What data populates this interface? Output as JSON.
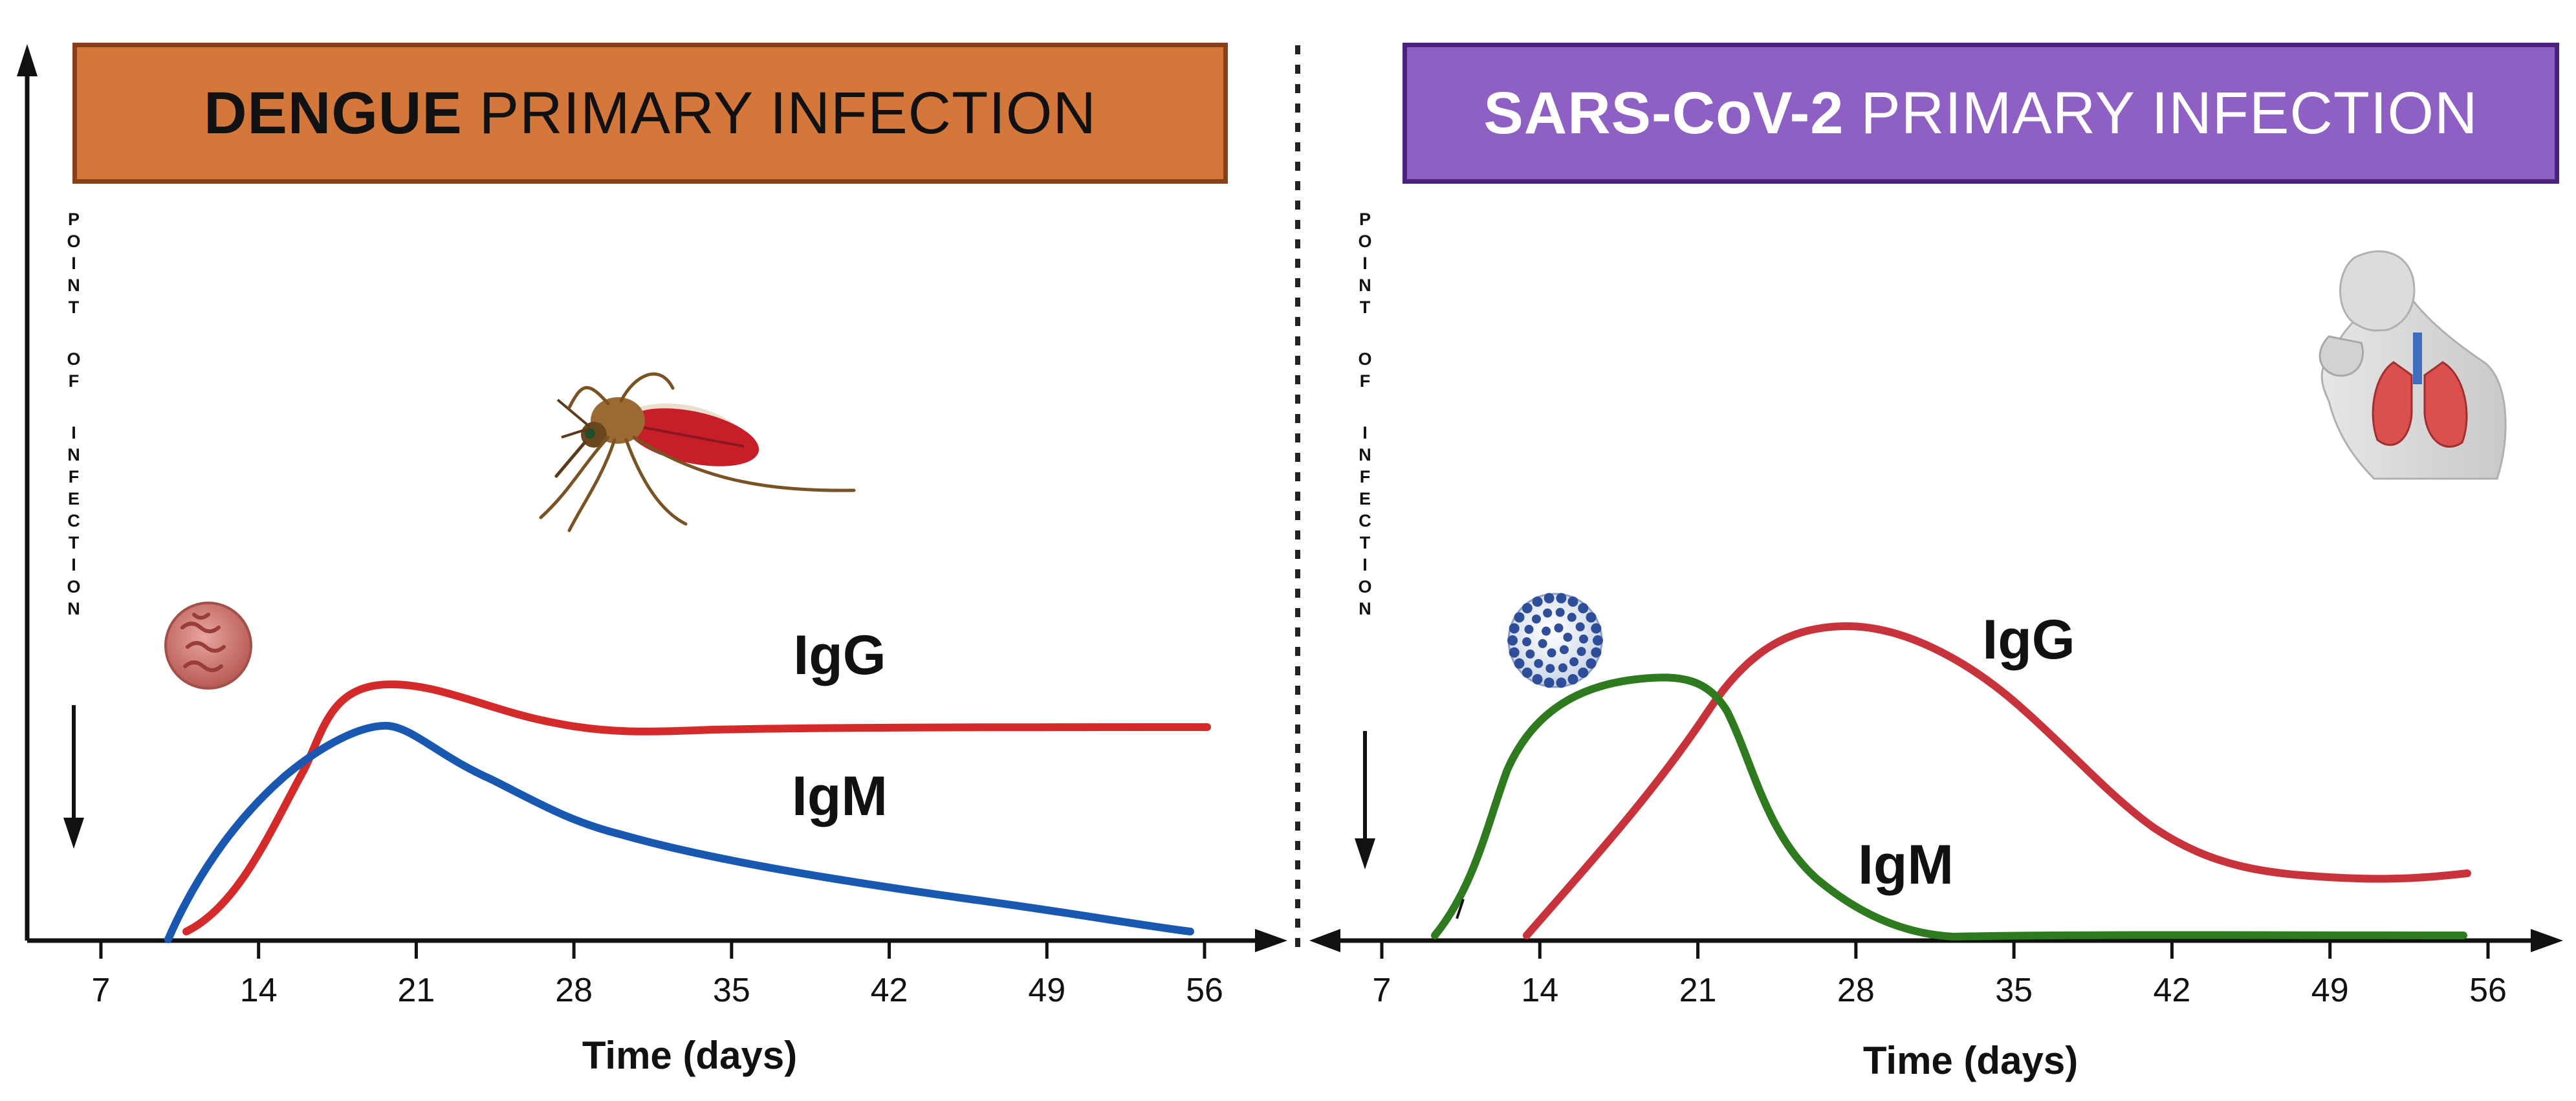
{
  "panels": [
    {
      "banner": {
        "bold": "DENGUE",
        "rest": "PRIMARY INFECTION"
      },
      "point_of_infection": "POINT OF INFECTION",
      "x_ticks": [
        "7",
        "14",
        "21",
        "28",
        "35",
        "42",
        "49",
        "56"
      ],
      "x_label": "Time (days)",
      "curves": [
        {
          "name": "IgG",
          "color": "#D42A2A"
        },
        {
          "name": "IgM",
          "color": "#1858B0"
        }
      ],
      "icons": [
        "dengue-virus-icon",
        "mosquito-icon"
      ]
    },
    {
      "banner": {
        "bold": "SARS-CoV-2",
        "rest": "PRIMARY INFECTION"
      },
      "point_of_infection": "POINT OF INFECTION",
      "x_ticks": [
        "7",
        "14",
        "21",
        "28",
        "35",
        "42",
        "49",
        "56"
      ],
      "x_label": "Time (days)",
      "curves": [
        {
          "name": "IgG",
          "color": "#C8323A"
        },
        {
          "name": "IgM",
          "color": "#2E7A1E"
        }
      ],
      "icons": [
        "coronavirus-icon",
        "coughing-person-lungs-icon"
      ]
    }
  ]
}
